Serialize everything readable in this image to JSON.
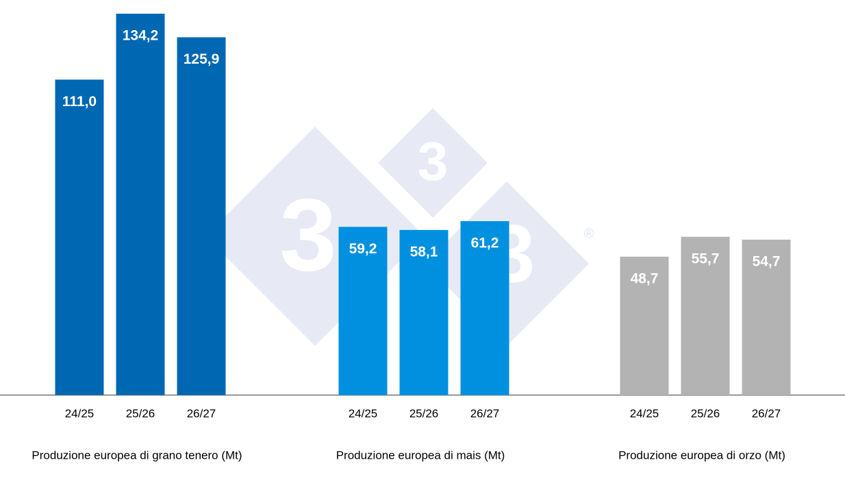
{
  "chart_data": [
    {
      "type": "bar",
      "xlabel": "Produzione europea di grano tenero (Mt)",
      "categories": [
        "24/25",
        "25/26",
        "26/27"
      ],
      "values": [
        111.0,
        134.2,
        125.9
      ],
      "value_labels": [
        "111,0",
        "134,2",
        "125,9"
      ],
      "color": "#0068b3"
    },
    {
      "type": "bar",
      "xlabel": "Produzione europea di mais (Mt)",
      "categories": [
        "24/25",
        "25/26",
        "26/27"
      ],
      "values": [
        59.2,
        58.1,
        61.2
      ],
      "value_labels": [
        "59,2",
        "58,1",
        "61,2"
      ],
      "color": "#0090e0"
    },
    {
      "type": "bar",
      "xlabel": "Produzione europea di orzo (Mt)",
      "categories": [
        "24/25",
        "25/26",
        "26/27"
      ],
      "values": [
        48.7,
        55.7,
        54.7
      ],
      "value_labels": [
        "48,7",
        "55,7",
        "54,7"
      ],
      "color": "#b3b3b3"
    }
  ],
  "watermark": {
    "marks": [
      "3",
      "3",
      "3"
    ],
    "registered": "®"
  }
}
